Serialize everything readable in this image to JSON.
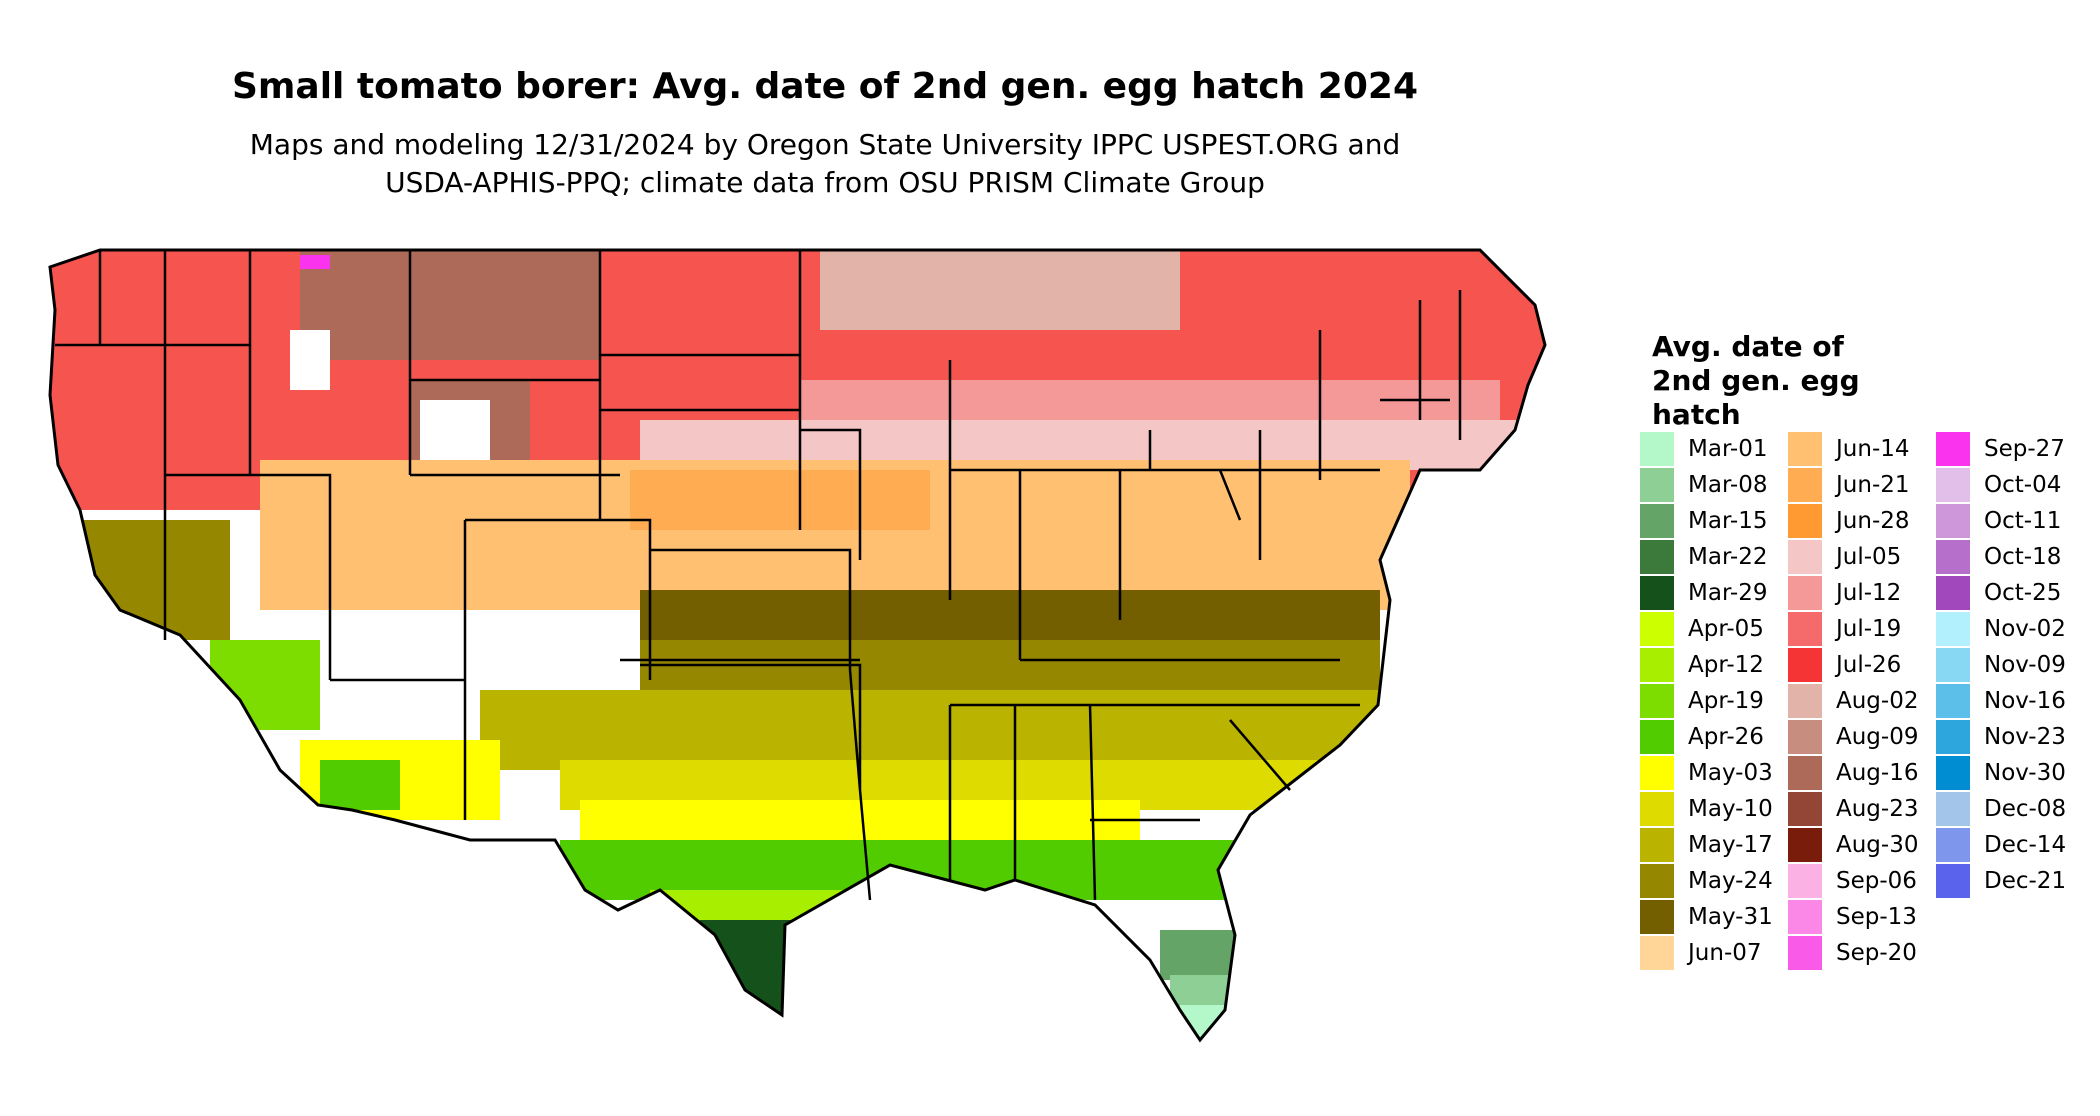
{
  "title": "Small tomato borer: Avg. date of 2nd gen. egg hatch 2024",
  "subtitle_lines": [
    "Maps and modeling 12/31/2024 by Oregon State University IPPC USPEST.ORG and",
    "USDA-APHIS-PPQ; climate data from OSU PRISM Climate Group"
  ],
  "legend": {
    "title_lines": [
      "Avg. date of",
      "2nd gen. egg",
      "hatch"
    ],
    "items": [
      {
        "label": "Mar-01",
        "color": "#b4f7c9"
      },
      {
        "label": "Mar-08",
        "color": "#8ecf95"
      },
      {
        "label": "Mar-15",
        "color": "#64a467"
      },
      {
        "label": "Mar-22",
        "color": "#3c7a3c"
      },
      {
        "label": "Mar-29",
        "color": "#15511a"
      },
      {
        "label": "Apr-05",
        "color": "#ccff00"
      },
      {
        "label": "Apr-12",
        "color": "#a8ee00"
      },
      {
        "label": "Apr-19",
        "color": "#7ddd00"
      },
      {
        "label": "Apr-26",
        "color": "#51cc00"
      },
      {
        "label": "May-03",
        "color": "#ffff00"
      },
      {
        "label": "May-10",
        "color": "#dedb00"
      },
      {
        "label": "May-17",
        "color": "#bab300"
      },
      {
        "label": "May-24",
        "color": "#968700"
      },
      {
        "label": "May-31",
        "color": "#735e00"
      },
      {
        "label": "Jun-07",
        "color": "#ffd697"
      },
      {
        "label": "Jun-14",
        "color": "#ffc072"
      },
      {
        "label": "Jun-21",
        "color": "#ffac52"
      },
      {
        "label": "Jun-28",
        "color": "#ff9a33"
      },
      {
        "label": "Jul-05",
        "color": "#f5c6c6"
      },
      {
        "label": "Jul-12",
        "color": "#f59898"
      },
      {
        "label": "Jul-19",
        "color": "#f56a6a"
      },
      {
        "label": "Jul-26",
        "color": "#f53535"
      },
      {
        "label": "Aug-02",
        "color": "#e2b3a9"
      },
      {
        "label": "Aug-09",
        "color": "#c78d7f"
      },
      {
        "label": "Aug-16",
        "color": "#ad6a58"
      },
      {
        "label": "Aug-23",
        "color": "#934635"
      },
      {
        "label": "Aug-30",
        "color": "#7a1c0b"
      },
      {
        "label": "Sep-06",
        "color": "#fcb1e5"
      },
      {
        "label": "Sep-13",
        "color": "#fb88e7"
      },
      {
        "label": "Sep-20",
        "color": "#fa5ae8"
      },
      {
        "label": "Sep-27",
        "color": "#f933ee"
      },
      {
        "label": "Oct-04",
        "color": "#e1bfe8"
      },
      {
        "label": "Oct-11",
        "color": "#cd97d9"
      },
      {
        "label": "Oct-18",
        "color": "#b66fcb"
      },
      {
        "label": "Oct-25",
        "color": "#a149bc"
      },
      {
        "label": "Nov-02",
        "color": "#b1f0fc"
      },
      {
        "label": "Nov-09",
        "color": "#88d7f3"
      },
      {
        "label": "Nov-16",
        "color": "#5bbfe9"
      },
      {
        "label": "Nov-23",
        "color": "#2da6de"
      },
      {
        "label": "Nov-30",
        "color": "#018dd2"
      },
      {
        "label": "Dec-08",
        "color": "#a3c5ea"
      },
      {
        "label": "Dec-14",
        "color": "#7e97ec"
      },
      {
        "label": "Dec-21",
        "color": "#5a63ec"
      }
    ]
  },
  "map_colors": {
    "boundary": "#000000",
    "north": "#f5544f",
    "north_light": "#f59898",
    "mountain": "#ad6a58",
    "mountain_light": "#e2b3a9",
    "snow": "#ffffff",
    "magenta": "#f933ee",
    "central": "#ffc072",
    "central_dark": "#ffac52",
    "central_pale": "#f5c6c6",
    "olive": "#968700",
    "olive_dark": "#735e00",
    "olive_mid": "#bab300",
    "yellow_dark": "#dedb00",
    "yellow": "#ffff00",
    "green": "#51cc00",
    "green_light": "#7ddd00",
    "lime": "#a8ee00",
    "forest": "#15511a",
    "fl_mid": "#64a467",
    "fl_light": "#8ecf95",
    "fl_pale": "#b4f7c9"
  }
}
